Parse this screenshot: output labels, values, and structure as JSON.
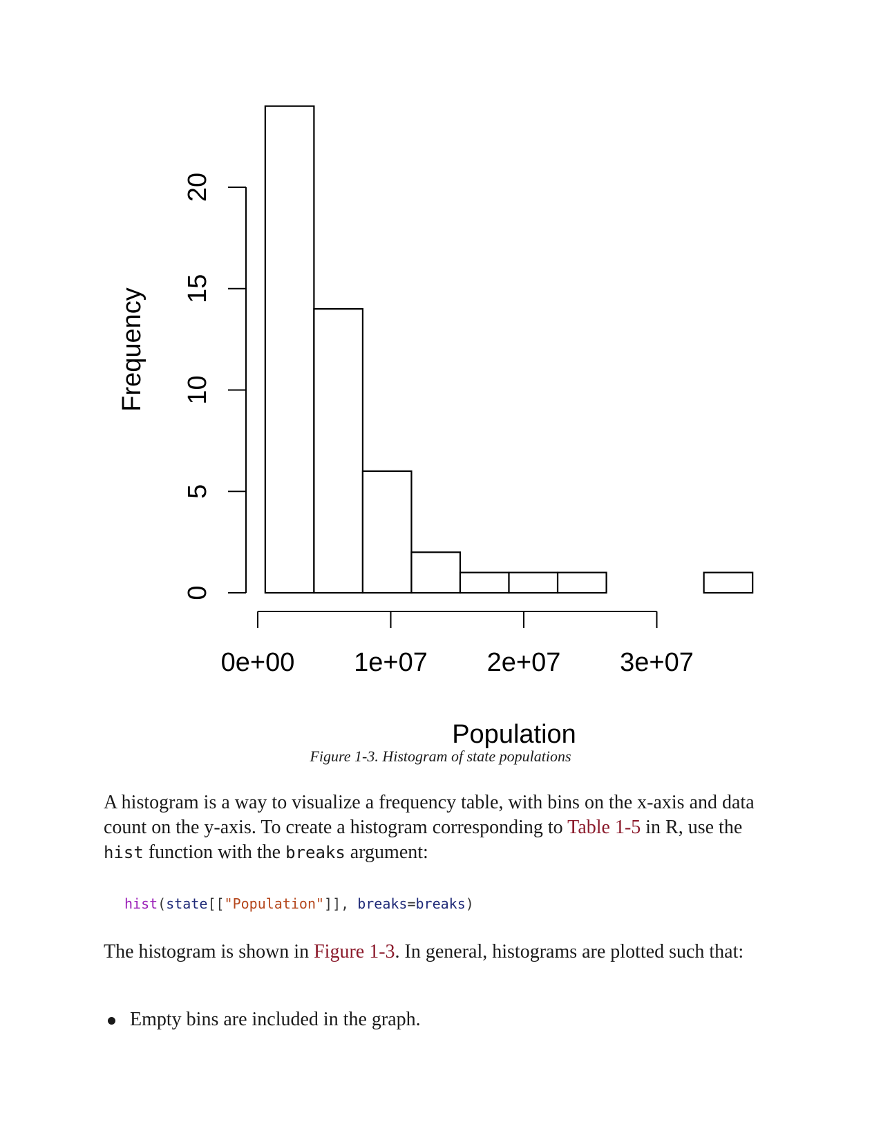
{
  "chart_data": {
    "type": "bar",
    "title": "",
    "xlabel": "Population",
    "ylabel": "Frequency",
    "bin_width": 3664000,
    "bins": [
      {
        "start": 564000,
        "end": 4228000,
        "count": 24
      },
      {
        "start": 4228000,
        "end": 7892000,
        "count": 14
      },
      {
        "start": 7892000,
        "end": 11556000,
        "count": 6
      },
      {
        "start": 11556000,
        "end": 15220000,
        "count": 2
      },
      {
        "start": 15220000,
        "end": 18884000,
        "count": 1
      },
      {
        "start": 18884000,
        "end": 22548000,
        "count": 1
      },
      {
        "start": 22548000,
        "end": 26212000,
        "count": 1
      },
      {
        "start": 26212000,
        "end": 29876000,
        "count": 0
      },
      {
        "start": 29876000,
        "end": 33540000,
        "count": 0
      },
      {
        "start": 33540000,
        "end": 37204000,
        "count": 1
      }
    ],
    "x_ticks": [
      {
        "value": 0,
        "label": "0e+00"
      },
      {
        "value": 10000000,
        "label": "1e+07"
      },
      {
        "value": 20000000,
        "label": "2e+07"
      },
      {
        "value": 30000000,
        "label": "3e+07"
      }
    ],
    "y_ticks": [
      {
        "value": 0,
        "label": "0"
      },
      {
        "value": 5,
        "label": "5"
      },
      {
        "value": 10,
        "label": "10"
      },
      {
        "value": 15,
        "label": "15"
      },
      {
        "value": 20,
        "label": "20"
      }
    ],
    "ylim": [
      0,
      24
    ],
    "grid": false,
    "legend": "none"
  },
  "caption": "Figure 1-3. Histogram of state populations",
  "para1": {
    "t1": "A histogram is a way to visualize a frequency table, with bins on the x-axis and data count on the y-axis. To create a histogram corresponding to ",
    "link": "Table 1-5",
    "t2": " in R, use the ",
    "code1": "hist",
    "t3": " function with the ",
    "code2": "breaks",
    "t4": " argument:"
  },
  "code": {
    "fn": "hist",
    "p1": "(",
    "id1": "state",
    "p2": "[[",
    "str": "\"Population\"",
    "p3": "]], ",
    "id2": "breaks",
    "eq": "=",
    "id3": "breaks",
    "p4": ")"
  },
  "para2": {
    "t1": "The histogram is shown in ",
    "link": "Figure 1-3",
    "t2": ". In general, histograms are plotted such that:"
  },
  "bullets": [
    "Empty bins are included in the graph."
  ],
  "colors": {
    "link": "#8b1a2b",
    "code_function": "#9b20b8",
    "code_identifier": "#1f2a78",
    "code_string": "#b5471c"
  }
}
